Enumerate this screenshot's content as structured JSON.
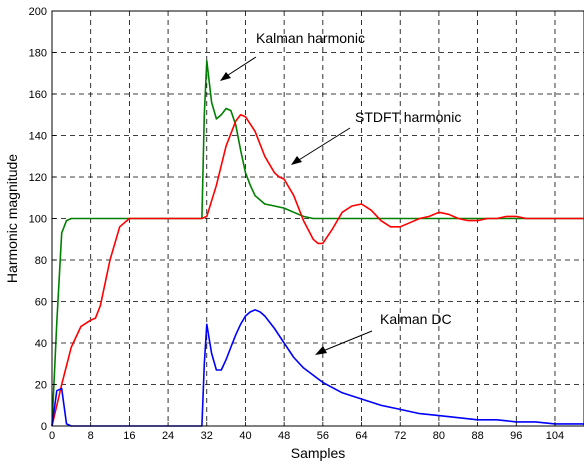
{
  "chart_data": {
    "type": "line",
    "title": "",
    "xlabel": "Samples",
    "ylabel": "Harmonic magnitude",
    "xlim": [
      0,
      110
    ],
    "ylim": [
      0,
      200
    ],
    "x_ticks": [
      0,
      8,
      16,
      24,
      32,
      40,
      48,
      56,
      64,
      72,
      80,
      88,
      96,
      104
    ],
    "y_ticks": [
      0,
      20,
      40,
      60,
      80,
      100,
      120,
      140,
      160,
      180,
      200
    ],
    "grid": true,
    "series": [
      {
        "name": "Kalman harmonic",
        "color": "#008000",
        "x": [
          0,
          1,
          2,
          3,
          4,
          8,
          16,
          24,
          31,
          31.5,
          32,
          33,
          34,
          35,
          36,
          37,
          38,
          39,
          40,
          41,
          42,
          44,
          46,
          48,
          50,
          52,
          54,
          56,
          60,
          64,
          72,
          80,
          88,
          96,
          104,
          110
        ],
        "y": [
          0,
          50,
          93,
          99,
          100,
          100,
          100,
          100,
          100,
          150,
          176,
          156,
          148,
          150,
          153,
          152,
          145,
          133,
          122,
          116,
          111,
          107,
          106,
          105,
          103,
          101,
          100,
          100,
          100,
          100,
          100,
          100,
          100,
          100,
          100,
          100
        ]
      },
      {
        "name": "STDFT harmonic",
        "color": "#ff0000",
        "x": [
          0,
          2,
          4,
          6,
          8,
          9,
          10,
          12,
          14,
          16,
          20,
          24,
          28,
          31,
          32,
          34,
          36,
          38,
          39,
          40,
          42,
          44,
          46,
          47,
          48,
          50,
          52,
          54,
          55,
          56,
          58,
          60,
          62,
          64,
          66,
          68,
          70,
          72,
          74,
          76,
          78,
          80,
          82,
          84,
          86,
          88,
          90,
          92,
          94,
          96,
          98,
          100,
          104,
          110
        ],
        "y": [
          0,
          20,
          38,
          48,
          51,
          52,
          58,
          80,
          96,
          100,
          100,
          100,
          100,
          100,
          101,
          116,
          135,
          147,
          150,
          149,
          142,
          130,
          122,
          120,
          119,
          111,
          99,
          90,
          88,
          88,
          95,
          103,
          106,
          107,
          104,
          99,
          96,
          96,
          98,
          100,
          101,
          103,
          102,
          100,
          99,
          99,
          100,
          100,
          101,
          101,
          100,
          100,
          100,
          100
        ]
      },
      {
        "name": "Kalman DC",
        "color": "#0000ff",
        "x": [
          0,
          1,
          2,
          3,
          4,
          8,
          16,
          24,
          30,
          31,
          31.5,
          32,
          33,
          34,
          35,
          36,
          37,
          38,
          39,
          40,
          41,
          42,
          43,
          44,
          46,
          48,
          50,
          52,
          56,
          60,
          64,
          68,
          72,
          76,
          80,
          84,
          88,
          92,
          96,
          100,
          104,
          110
        ],
        "y": [
          0,
          17,
          18,
          1,
          0,
          0,
          0,
          0,
          0,
          0,
          30,
          49,
          35,
          27,
          27,
          32,
          38,
          44,
          49,
          53,
          55,
          56,
          55,
          53,
          47,
          40,
          33,
          28,
          21,
          16,
          13,
          10,
          8,
          6,
          5,
          4,
          3,
          3,
          2,
          2,
          1,
          1
        ]
      }
    ],
    "annotations": [
      {
        "text": "Kalman harmonic"
      },
      {
        "text": "STDFT harmonic"
      },
      {
        "text": "Kalman DC"
      }
    ]
  }
}
